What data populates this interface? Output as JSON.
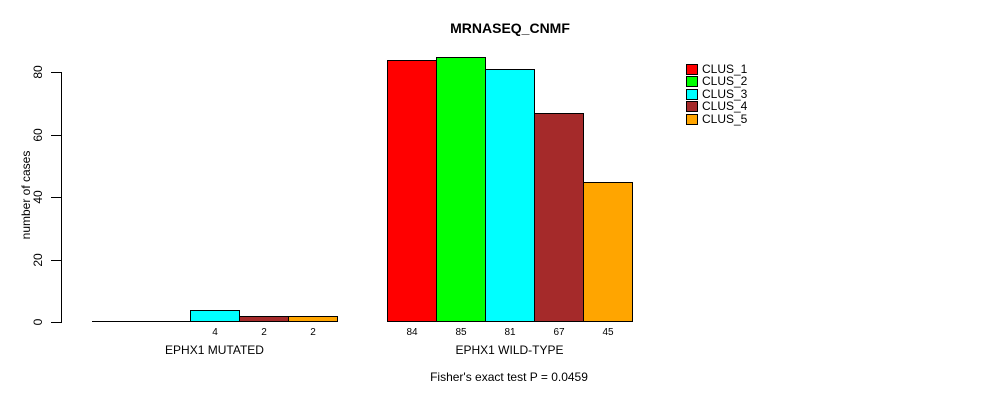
{
  "title": "MRNASEQ_CNMF",
  "footer": "Fisher's exact test P = 0.0459",
  "chart_data": {
    "type": "bar",
    "title": "MRNASEQ_CNMF",
    "ylabel": "number of cases",
    "xlabel": "",
    "groups": [
      "EPHX1 MUTATED",
      "EPHX1 WILD-TYPE"
    ],
    "series": [
      {
        "name": "CLUS_1",
        "color": "#ff0000",
        "values": [
          0,
          84
        ]
      },
      {
        "name": "CLUS_2",
        "color": "#00ff00",
        "values": [
          0,
          85
        ]
      },
      {
        "name": "CLUS_3",
        "color": "#00ffff",
        "values": [
          4,
          81
        ]
      },
      {
        "name": "CLUS_4",
        "color": "#a52a2a",
        "values": [
          2,
          67
        ]
      },
      {
        "name": "CLUS_5",
        "color": "#ffa500",
        "values": [
          2,
          45
        ]
      }
    ],
    "yticks": [
      0,
      20,
      40,
      60,
      80
    ],
    "ylim": [
      0,
      85
    ],
    "bar_value_labels": true,
    "zero_bars_drawn_flat": true,
    "legend_position": "top-right",
    "grid": false,
    "annotation": "Fisher's exact test P = 0.0459",
    "background_color": "#ffffff",
    "bar_border_color": "#000000"
  }
}
